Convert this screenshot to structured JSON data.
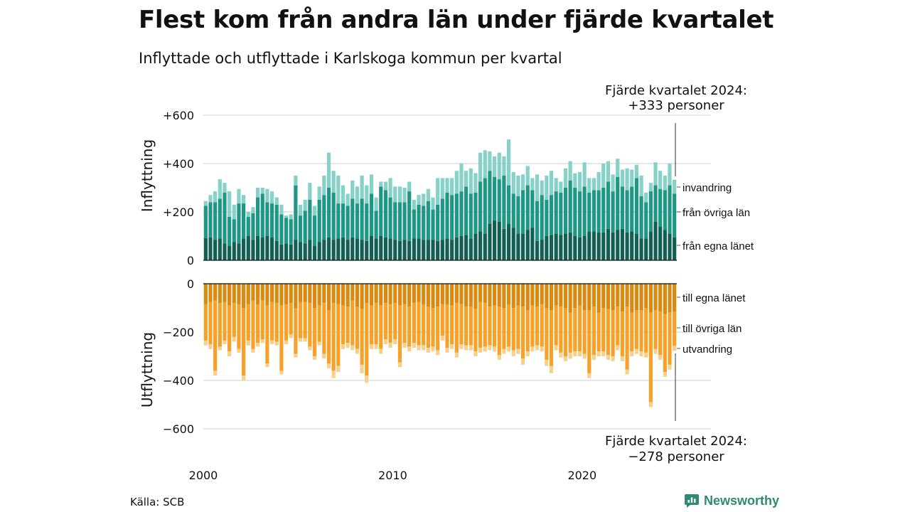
{
  "title": "Flest kom från andra län under fjärde kvartalet",
  "subtitle": "Inflyttade och utflyttade i Karlskoga kommun per kvartal",
  "source": "Källa: SCB",
  "brand": {
    "name": "Newsworthy",
    "icon": "newsworthy-logo-icon"
  },
  "colors": {
    "in_egna": "#125f53",
    "in_ovriga": "#1e9784",
    "in_invandring": "#86d2c8",
    "ut_egna": "#d88a12",
    "ut_ovriga": "#f6a22a",
    "ut_utvandring": "#f6d18e",
    "grid": "#dddddd",
    "brand": "#2f8a73"
  },
  "annotations": {
    "top_line1": "Fjärde kvartalet 2024:",
    "top_line2": "+333 personer",
    "bottom_line1": "Fjärde kvartalet 2024:",
    "bottom_line2": "−278 personer"
  },
  "chart_data": {
    "type": "bar",
    "stacked": true,
    "title": "Flest kom från andra län under fjärde kvartalet",
    "subtitle": "Inflyttade och utflyttade i Karlskoga kommun per kvartal",
    "xlabel": "",
    "x_start_year": 2000,
    "x_ticks": [
      "2000",
      "2010",
      "2020"
    ],
    "categories": [
      "2000 Q1",
      "2000 Q2",
      "2000 Q3",
      "2000 Q4",
      "2001 Q1",
      "2001 Q2",
      "2001 Q3",
      "2001 Q4",
      "2002 Q1",
      "2002 Q2",
      "2002 Q3",
      "2002 Q4",
      "2003 Q1",
      "2003 Q2",
      "2003 Q3",
      "2003 Q4",
      "2004 Q1",
      "2004 Q2",
      "2004 Q3",
      "2004 Q4",
      "2005 Q1",
      "2005 Q2",
      "2005 Q3",
      "2005 Q4",
      "2006 Q1",
      "2006 Q2",
      "2006 Q3",
      "2006 Q4",
      "2007 Q1",
      "2007 Q2",
      "2007 Q3",
      "2007 Q4",
      "2008 Q1",
      "2008 Q2",
      "2008 Q3",
      "2008 Q4",
      "2009 Q1",
      "2009 Q2",
      "2009 Q3",
      "2009 Q4",
      "2010 Q1",
      "2010 Q2",
      "2010 Q3",
      "2010 Q4",
      "2011 Q1",
      "2011 Q2",
      "2011 Q3",
      "2011 Q4",
      "2012 Q1",
      "2012 Q2",
      "2012 Q3",
      "2012 Q4",
      "2013 Q1",
      "2013 Q2",
      "2013 Q3",
      "2013 Q4",
      "2014 Q1",
      "2014 Q2",
      "2014 Q3",
      "2014 Q4",
      "2015 Q1",
      "2015 Q2",
      "2015 Q3",
      "2015 Q4",
      "2016 Q1",
      "2016 Q2",
      "2016 Q3",
      "2016 Q4",
      "2017 Q1",
      "2017 Q2",
      "2017 Q3",
      "2017 Q4",
      "2018 Q1",
      "2018 Q2",
      "2018 Q3",
      "2018 Q4",
      "2019 Q1",
      "2019 Q2",
      "2019 Q3",
      "2019 Q4",
      "2020 Q1",
      "2020 Q2",
      "2020 Q3",
      "2020 Q4",
      "2021 Q1",
      "2021 Q2",
      "2021 Q3",
      "2021 Q4",
      "2022 Q1",
      "2022 Q2",
      "2022 Q3",
      "2022 Q4",
      "2023 Q1",
      "2023 Q2",
      "2023 Q3",
      "2023 Q4",
      "2024 Q1",
      "2024 Q2",
      "2024 Q3",
      "2024 Q4"
    ],
    "inflyttning": {
      "ylabel": "Inflyttning",
      "ylim": [
        0,
        600
      ],
      "yticks": [
        0,
        200,
        400,
        600
      ],
      "ytick_labels": [
        "0",
        "+200",
        "+400",
        "+600"
      ],
      "series": [
        {
          "name": "från egna länet",
          "values": [
            92,
            95,
            85,
            90,
            70,
            60,
            75,
            70,
            90,
            100,
            85,
            100,
            95,
            100,
            95,
            80,
            65,
            70,
            65,
            85,
            75,
            70,
            85,
            60,
            75,
            85,
            95,
            85,
            90,
            95,
            85,
            95,
            90,
            85,
            80,
            100,
            90,
            100,
            95,
            90,
            85,
            80,
            85,
            80,
            90,
            90,
            85,
            85,
            85,
            80,
            85,
            90,
            85,
            95,
            100,
            105,
            90,
            110,
            120,
            110,
            150,
            165,
            160,
            130,
            150,
            135,
            110,
            110,
            125,
            135,
            80,
            85,
            100,
            105,
            110,
            105,
            110,
            115,
            100,
            95,
            100,
            120,
            120,
            115,
            115,
            130,
            115,
            125,
            130,
            115,
            120,
            110,
            90,
            90,
            120,
            160,
            140,
            125,
            110,
            95
          ]
        },
        {
          "name": "från övriga län",
          "values": [
            133,
            145,
            155,
            165,
            210,
            120,
            95,
            165,
            145,
            80,
            110,
            160,
            180,
            140,
            140,
            150,
            125,
            105,
            105,
            225,
            110,
            135,
            165,
            125,
            175,
            185,
            205,
            195,
            145,
            140,
            140,
            160,
            145,
            170,
            155,
            175,
            115,
            205,
            195,
            170,
            155,
            160,
            155,
            205,
            120,
            140,
            140,
            160,
            125,
            150,
            170,
            190,
            185,
            180,
            185,
            200,
            185,
            170,
            205,
            230,
            220,
            180,
            175,
            220,
            160,
            140,
            155,
            180,
            185,
            155,
            165,
            185,
            150,
            165,
            175,
            175,
            190,
            215,
            200,
            190,
            205,
            160,
            170,
            175,
            185,
            195,
            170,
            220,
            175,
            175,
            185,
            230,
            175,
            150,
            165,
            150,
            155,
            165,
            200,
            180
          ]
        },
        {
          "name": "invandring",
          "values": [
            20,
            30,
            45,
            80,
            40,
            105,
            60,
            60,
            35,
            20,
            25,
            40,
            25,
            55,
            50,
            30,
            40,
            10,
            20,
            40,
            45,
            45,
            70,
            40,
            55,
            80,
            145,
            90,
            115,
            75,
            50,
            75,
            70,
            95,
            75,
            80,
            55,
            20,
            35,
            80,
            65,
            65,
            60,
            40,
            40,
            40,
            50,
            50,
            50,
            110,
            85,
            60,
            70,
            95,
            115,
            65,
            105,
            80,
            120,
            115,
            80,
            85,
            110,
            80,
            190,
            90,
            85,
            65,
            80,
            50,
            110,
            60,
            100,
            100,
            55,
            45,
            80,
            80,
            60,
            80,
            100,
            60,
            50,
            75,
            100,
            85,
            70,
            75,
            70,
            90,
            70,
            55,
            85,
            40,
            35,
            95,
            75,
            60,
            90,
            58
          ]
        }
      ]
    },
    "utflyttning": {
      "ylabel": "Utflyttning",
      "ylim": [
        -600,
        0
      ],
      "yticks": [
        0,
        -200,
        -400,
        -600
      ],
      "ytick_labels": [
        "0",
        "−200",
        "−400",
        "−600"
      ],
      "series": [
        {
          "name": "till egna länet",
          "values": [
            -85,
            -75,
            -70,
            -80,
            -75,
            -90,
            -80,
            -85,
            -100,
            -85,
            -70,
            -85,
            -70,
            -90,
            -75,
            -80,
            -90,
            -85,
            -80,
            -100,
            -75,
            -75,
            -80,
            -100,
            -90,
            -80,
            -110,
            -80,
            -85,
            -90,
            -95,
            -70,
            -95,
            -105,
            -80,
            -90,
            -80,
            -90,
            -80,
            -85,
            -80,
            -90,
            -85,
            -95,
            -80,
            -75,
            -85,
            -95,
            -100,
            -95,
            -85,
            -85,
            -90,
            -80,
            -85,
            -95,
            -95,
            -105,
            -75,
            -80,
            -95,
            -90,
            -95,
            -100,
            -85,
            -100,
            -90,
            -95,
            -110,
            -90,
            -95,
            -85,
            -100,
            -110,
            -90,
            -95,
            -100,
            -120,
            -100,
            -90,
            -110,
            -110,
            -95,
            -120,
            -100,
            -105,
            -110,
            -95,
            -115,
            -95,
            -120,
            -110,
            -110,
            -100,
            -120,
            -110,
            -115,
            -125,
            -120,
            -117
          ]
        },
        {
          "name": "till övriga län",
          "values": [
            -150,
            -175,
            -290,
            -180,
            -160,
            -190,
            -140,
            -185,
            -280,
            -150,
            -200,
            -160,
            -160,
            -240,
            -160,
            -160,
            -270,
            -150,
            -130,
            -190,
            -150,
            -150,
            -180,
            -200,
            -150,
            -210,
            -220,
            -280,
            -255,
            -160,
            -150,
            -185,
            -175,
            -230,
            -300,
            -160,
            -170,
            -180,
            -150,
            -160,
            -150,
            -235,
            -160,
            -165,
            -165,
            -180,
            -170,
            -170,
            -160,
            -180,
            -130,
            -180,
            -160,
            -205,
            -165,
            -160,
            -160,
            -175,
            -190,
            -180,
            -160,
            -170,
            -200,
            -170,
            -175,
            -175,
            -180,
            -215,
            -170,
            -170,
            -160,
            -175,
            -215,
            -230,
            -165,
            -190,
            -200,
            -165,
            -180,
            -190,
            -180,
            -260,
            -200,
            -160,
            -180,
            -190,
            -190,
            -160,
            -185,
            -260,
            -160,
            -160,
            -170,
            -185,
            -370,
            -160,
            -180,
            -240,
            -215,
            -140
          ]
        },
        {
          "name": "utvandring",
          "values": [
            -20,
            -20,
            -20,
            -15,
            -15,
            -20,
            -20,
            -15,
            -20,
            -20,
            -15,
            -15,
            -15,
            -15,
            -15,
            -15,
            -15,
            -15,
            -15,
            -15,
            -15,
            -15,
            -15,
            -15,
            -15,
            -20,
            -20,
            -30,
            -25,
            -20,
            -20,
            -20,
            -20,
            -35,
            -30,
            -20,
            -20,
            -20,
            -20,
            -20,
            -20,
            -20,
            -20,
            -20,
            -20,
            -20,
            -20,
            -20,
            -20,
            -20,
            -20,
            -20,
            -20,
            -20,
            -20,
            -20,
            -20,
            -20,
            -20,
            -20,
            -20,
            -20,
            -20,
            -20,
            -20,
            -25,
            -20,
            -25,
            -20,
            -20,
            -20,
            -20,
            -25,
            -30,
            -20,
            -20,
            -20,
            -25,
            -20,
            -20,
            -20,
            -20,
            -20,
            -20,
            -20,
            -20,
            -20,
            -20,
            -20,
            -20,
            -20,
            -20,
            -20,
            -20,
            -20,
            -20,
            -20,
            -20,
            -20,
            -21
          ]
        }
      ]
    },
    "segment_labels_in": [
      "invandring",
      "från övriga län",
      "från egna länet"
    ],
    "segment_labels_out": [
      "till egna länet",
      "till övriga län",
      "utvandring"
    ],
    "grid": true,
    "legend": "direct labels right"
  }
}
